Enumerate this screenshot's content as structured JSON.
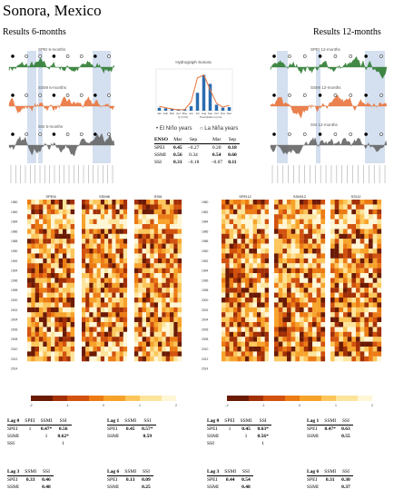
{
  "figure": {
    "title": "Sonora, Mexico",
    "results_left": "Results 6-months",
    "results_right": "Results 12-months"
  },
  "left_ts": {
    "labels": [
      "SPEI 6-months",
      "SSMI 6-months",
      "SSI 6-months"
    ],
    "colors": [
      "#2e7d32",
      "#e8743b",
      "#666666"
    ]
  },
  "right_ts": {
    "labels": [
      "SPEI 12-months",
      "SSMI 12-months",
      "SSI 12-months"
    ],
    "colors": [
      "#2e7d32",
      "#e8743b",
      "#666666"
    ]
  },
  "hydrograph": {
    "title": "Hydrograph Sonora",
    "months": [
      "Jan",
      "Feb",
      "Mar",
      "Apr",
      "May",
      "Jun",
      "Jul",
      "Aug",
      "Sep",
      "Oct",
      "Nov",
      "Dec"
    ],
    "flow_legend": "Q (m³/s)",
    "precip_legend": "Precipitation (mm)",
    "flow_color": "#2b6cb0",
    "precip_color": "#e8743b"
  },
  "legend": {
    "el_nino": "El Niño years",
    "la_nina": "La Niña years"
  },
  "enso_table": {
    "head": [
      "ENSO",
      "Mar",
      "Sep",
      "Mar",
      "Sep"
    ],
    "rows": [
      [
        "SPEI",
        "0.45",
        "−0.27",
        "0.20",
        "0.18"
      ],
      [
        "SSMI",
        "0.56",
        "0.34",
        "0.54",
        "0.60"
      ],
      [
        "SSI",
        "0.31",
        "−0.18",
        "−0.07",
        "0.11"
      ]
    ]
  },
  "heatmaps": {
    "left_titles": [
      "SPEI6",
      "SSMI6",
      "SSI6"
    ],
    "right_titles": [
      "SPEI12",
      "SSMI12",
      "SSI12"
    ],
    "years": [
      "1980",
      "1982",
      "1984",
      "1986",
      "1988",
      "1990",
      "1992",
      "1994",
      "1996",
      "1998",
      "2000",
      "2002",
      "2004",
      "2006",
      "2008",
      "2010",
      "2012",
      "2014"
    ],
    "scale_ticks_left": [
      "-2",
      "-1",
      "0",
      "1",
      "2"
    ],
    "scale_ticks_right": [
      "-2",
      "-1",
      "0",
      "1",
      "2"
    ]
  },
  "corr_left": {
    "lag0": {
      "header": [
        "Lag 0",
        "SPEI",
        "SSMI",
        "SSI"
      ],
      "rows": [
        [
          "SPEI",
          "1",
          "0.47*",
          "0.56"
        ],
        [
          "SSMI",
          "",
          "1",
          "0.62*"
        ],
        [
          "SSI",
          "",
          "",
          "1"
        ]
      ]
    },
    "lag1": {
      "header": [
        "Lag 1",
        "SSMI",
        "SSI"
      ],
      "rows": [
        [
          "SPEI",
          "0.45",
          "0.57*"
        ],
        [
          "SSMI",
          "",
          "0.59"
        ]
      ]
    },
    "lag3": {
      "header": [
        "Lag 3",
        "SSMI",
        "SSI"
      ],
      "rows": [
        [
          "SPEI",
          "0.33",
          "0.46"
        ],
        [
          "SSMI",
          "",
          "0.48"
        ]
      ]
    },
    "lag6": {
      "header": [
        "Lag 6",
        "SSMI",
        "SSI"
      ],
      "rows": [
        [
          "SPEI",
          "0.13",
          "0.09"
        ],
        [
          "SSMI",
          "",
          "0.25"
        ]
      ]
    }
  },
  "corr_right": {
    "lag0": {
      "header": [
        "Lag 0",
        "SPEI",
        "SSMI",
        "SSI"
      ],
      "rows": [
        [
          "SPEI",
          "1",
          "0.45",
          "0.63*"
        ],
        [
          "SSMI",
          "",
          "1",
          "0.56*"
        ],
        [
          "SSI",
          "",
          "",
          "1"
        ]
      ]
    },
    "lag1": {
      "header": [
        "Lag 1",
        "SSMI",
        "SSI"
      ],
      "rows": [
        [
          "SPEI",
          "0.47*",
          "0.63"
        ],
        [
          "SSMI",
          "",
          "0.55"
        ]
      ]
    },
    "lag3": {
      "header": [
        "Lag 3",
        "SSMI",
        "SSI"
      ],
      "rows": [
        [
          "SPEI",
          "0.44",
          "0.54"
        ],
        [
          "SSMI",
          "",
          "0.48"
        ]
      ]
    },
    "lag6": {
      "header": [
        "Lag 6",
        "SSMI",
        "SSI"
      ],
      "rows": [
        [
          "SPEI",
          "0.31",
          "0.30"
        ],
        [
          "SSMI",
          "",
          "0.37"
        ]
      ]
    }
  }
}
